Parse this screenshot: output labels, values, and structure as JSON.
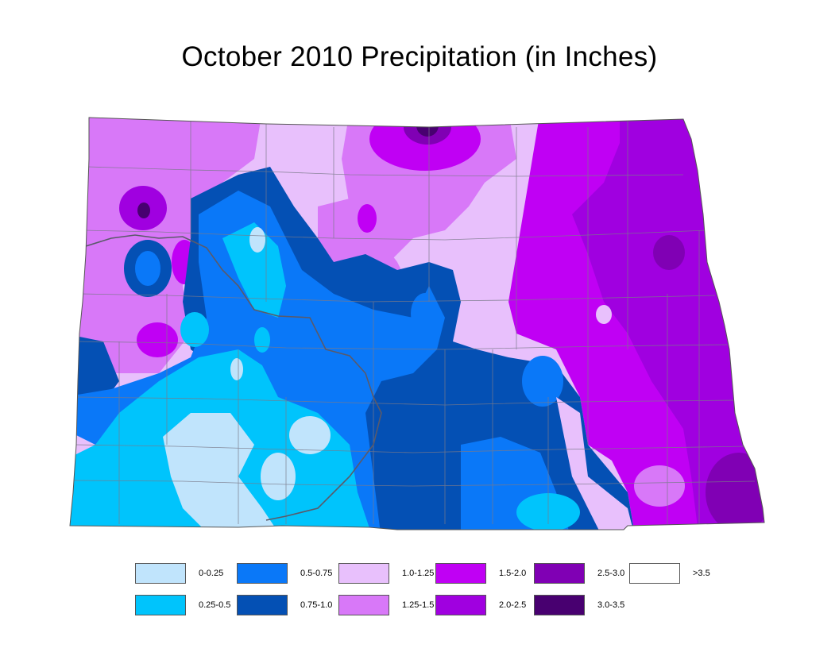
{
  "title": "October 2010 Precipitation (in Inches)",
  "legend": [
    {
      "label": "0-0.25",
      "color": "#c0e4fc"
    },
    {
      "label": "0.25-0.5",
      "color": "#00c4fc"
    },
    {
      "label": "0.5-0.75",
      "color": "#0a78f8"
    },
    {
      "label": "0.75-1.0",
      "color": "#0450b4"
    },
    {
      "label": "1.0-1.25",
      "color": "#e8c0fc"
    },
    {
      "label": "1.25-1.5",
      "color": "#d878f8"
    },
    {
      "label": "1.5-2.0",
      "color": "#c000f4"
    },
    {
      "label": "2.0-2.5",
      "color": "#a000e0"
    },
    {
      "label": "2.5-3.0",
      "color": "#8000b4"
    },
    {
      "label": "3.0-3.5",
      "color": "#480070"
    },
    {
      "label": ">3.5",
      "color": "#ffffff"
    }
  ]
}
